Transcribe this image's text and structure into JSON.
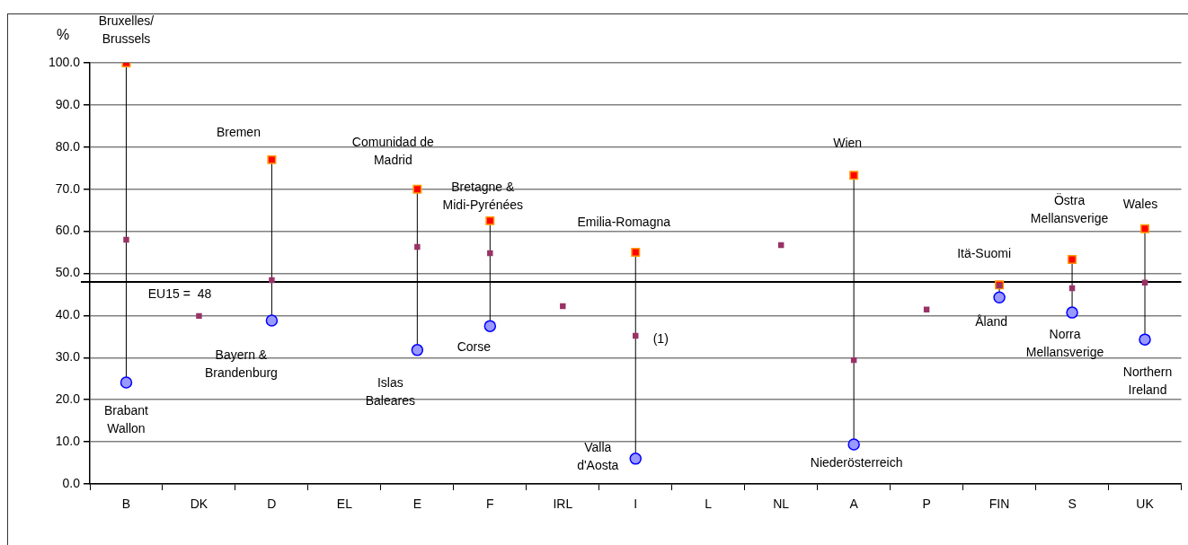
{
  "chart_data": {
    "type": "scatter",
    "ylabel": "%",
    "categories": [
      "B",
      "DK",
      "D",
      "EL",
      "E",
      "F",
      "IRL",
      "I",
      "L",
      "NL",
      "A",
      "P",
      "FIN",
      "S",
      "UK"
    ],
    "series": [
      {
        "color": "#ff0000",
        "marker": "square",
        "values": [
          100,
          null,
          77.0,
          null,
          70.0,
          62.5,
          null,
          55.0,
          null,
          null,
          73.3,
          null,
          47.3,
          53.3,
          60.6
        ]
      },
      {
        "color": "#9999ff",
        "marker": "circle",
        "values": [
          24.1,
          null,
          38.8,
          null,
          31.8,
          37.5,
          null,
          6.0,
          null,
          null,
          9.4,
          null,
          44.3,
          40.7,
          34.3
        ]
      },
      {
        "color": "#993366",
        "marker": "square",
        "values": [
          58.0,
          39.9,
          48.4,
          null,
          56.3,
          54.8,
          42.2,
          35.2,
          null,
          56.7,
          29.4,
          41.4,
          47.1,
          46.5,
          47.8
        ]
      }
    ],
    "ylim": [
      0,
      100
    ],
    "yticks": [
      {
        "value": 0,
        "label": "0.0"
      },
      {
        "value": 10,
        "label": "10.0"
      },
      {
        "value": 20,
        "label": "20.0"
      },
      {
        "value": 30,
        "label": "30.0"
      },
      {
        "value": 40,
        "label": "40.0"
      },
      {
        "value": 50,
        "label": "50.0"
      },
      {
        "value": 60,
        "label": "60.0"
      },
      {
        "value": 70,
        "label": "70.0"
      },
      {
        "value": 80,
        "label": "80.0"
      },
      {
        "value": 90,
        "label": "90.0"
      },
      {
        "value": 100,
        "label": "100.0"
      }
    ],
    "grid": "y",
    "legend": false,
    "ref_lines": [
      {
        "axis": "y",
        "value": 48,
        "label": "EU15 =  48",
        "color": "#000000"
      }
    ],
    "annotations": [
      {
        "text": "Bruxelles/\nBrussels",
        "x": "B",
        "y": 100
      },
      {
        "text": "Bremen",
        "x": "D",
        "y": 77.0
      },
      {
        "text": "Comunidad de\nMadrid",
        "x": "E",
        "y": 70.0
      },
      {
        "text": "Bretagne &\nMidi-Pyrénées",
        "x": "F",
        "y": 62.5
      },
      {
        "text": "Emilia-Romagna",
        "x": "I",
        "y": 55.0
      },
      {
        "text": "Wien",
        "x": "A",
        "y": 73.3
      },
      {
        "text": "Itä-Suomi",
        "x": "FIN",
        "y": 47.3
      },
      {
        "text": "Östra\nMellansverige",
        "x": "S",
        "y": 53.3
      },
      {
        "text": "Wales",
        "x": "UK",
        "y": 60.6
      },
      {
        "text": "Brabant\nWallon",
        "x": "B",
        "y": 24.1
      },
      {
        "text": "Bayern &\nBrandenburg",
        "x": "D",
        "y": 38.8
      },
      {
        "text": "Islas\nBaleares",
        "x": "E",
        "y": 31.8
      },
      {
        "text": "Corse",
        "x": "F",
        "y": 37.5
      },
      {
        "text": "Valla\nd'Aosta",
        "x": "I",
        "y": 6.0
      },
      {
        "text": "Niederösterreich",
        "x": "A",
        "y": 9.4
      },
      {
        "text": "Åland",
        "x": "FIN",
        "y": 44.3
      },
      {
        "text": "Norra\nMellansverige",
        "x": "S",
        "y": 40.7
      },
      {
        "text": "Northern\nIreland",
        "x": "UK",
        "y": 34.3
      },
      {
        "text": "(1)",
        "x": "I",
        "y": 35.2
      }
    ]
  }
}
